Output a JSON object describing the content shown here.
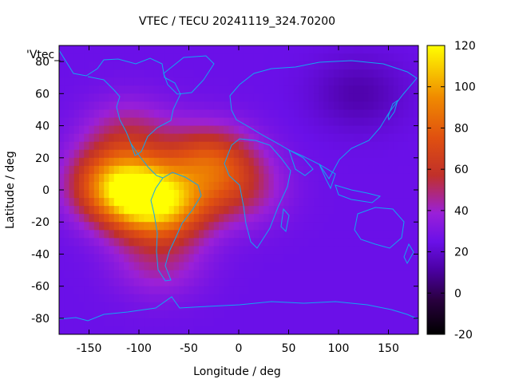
{
  "chart_data": {
    "type": "heatmap",
    "title": "VTEC / TECU 20241119_324.70200",
    "xlabel": "Longitude / deg",
    "ylabel": "Latitude / deg",
    "series_label": "'Vtec_",
    "xlim": [
      -180,
      180
    ],
    "ylim": [
      -90,
      90
    ],
    "x_ticks": [
      -150,
      -100,
      -50,
      0,
      50,
      100,
      150
    ],
    "y_ticks": [
      -80,
      -60,
      -40,
      -20,
      0,
      20,
      40,
      60,
      80
    ],
    "colorbar": {
      "min": -20,
      "max": 120,
      "ticks": [
        -20,
        0,
        20,
        40,
        60,
        80,
        100,
        120
      ]
    },
    "background_value": 25,
    "field_features": [
      {
        "description": "main TEC maximum over tropical Pacific / South America",
        "lon": -100,
        "lat": -5,
        "value": 100
      },
      {
        "description": "secondary maximum",
        "lon": -125,
        "lat": 5,
        "value": 95
      },
      {
        "description": "South America peak",
        "lon": -70,
        "lat": -10,
        "value": 90
      },
      {
        "description": "North Atlantic crest",
        "lon": -30,
        "lat": 18,
        "value": 85
      },
      {
        "description": "mid-latitude enhancement North America",
        "lon": -110,
        "lat": 35,
        "value": 55
      },
      {
        "description": "equatorial Atlantic tongue",
        "lon": 0,
        "lat": 0,
        "value": 55
      },
      {
        "description": "southern high-latitude lobe",
        "lon": -80,
        "lat": -45,
        "value": 50
      },
      {
        "description": "Siberian minimum",
        "lon": 120,
        "lat": 60,
        "value": 12
      }
    ]
  }
}
